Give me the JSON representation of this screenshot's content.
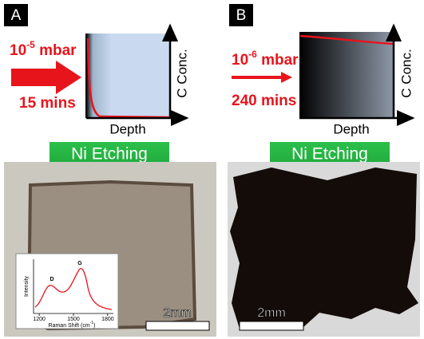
{
  "panel_a": {
    "label": "A",
    "pressure": {
      "base": "10",
      "exponent": "-5",
      "unit": " mbar"
    },
    "time": "15 mins",
    "y_axis_label": "C Conc.",
    "x_axis_label": "Depth",
    "etching": "Ni Etching",
    "scale_bar": "2mm",
    "inset": {
      "y_axis_label": "Intensity",
      "x_axis_label": {
        "text": "Raman Shift (cm",
        "exponent": "-1",
        "close": ")"
      },
      "peak_d": "D",
      "peak_g": "G",
      "xlim": [
        1150,
        1850
      ],
      "xticks": [
        1200,
        1500,
        1800
      ]
    }
  },
  "panel_b": {
    "label": "B",
    "pressure": {
      "base": "10",
      "exponent": "-6",
      "unit": " mbar"
    },
    "time": "240 mins",
    "y_axis_label": "C Conc.",
    "x_axis_label": "Depth",
    "etching": "Ni Etching",
    "scale_bar": "2mm"
  }
}
